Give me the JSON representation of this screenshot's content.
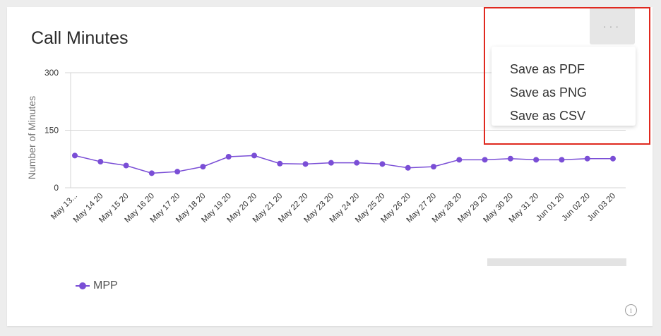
{
  "card": {
    "title": "Call Minutes"
  },
  "menu": {
    "trigger_icon": "more-horizontal-icon",
    "items": [
      {
        "label": "Save as PDF"
      },
      {
        "label": "Save as PNG"
      },
      {
        "label": "Save as CSV"
      }
    ]
  },
  "legend": {
    "label": "MPP"
  },
  "info_icon": "info-icon",
  "colors": {
    "series": "#7a4ed6",
    "highlight": "#e0291f",
    "gridline": "#d6d6d6"
  },
  "chart_data": {
    "type": "line",
    "title": "",
    "xlabel": "",
    "ylabel": "Number of Minutes",
    "ylim": [
      0,
      300
    ],
    "yticks": [
      0,
      150,
      300
    ],
    "grid": true,
    "legend_position": "bottom-left",
    "categories": [
      "May 13...",
      "May 14 20",
      "May 15 20",
      "May 16 20",
      "May 17 20",
      "May 18 20",
      "May 19 20",
      "May 20 20",
      "May 21 20",
      "May 22 20",
      "May 23 20",
      "May 24 20",
      "May 25 20",
      "May 26 20",
      "May 27 20",
      "May 28 20",
      "May 29 20",
      "May 30 20",
      "May 31 20",
      "Jun 01 20",
      "Jun 02 20",
      "Jun 03 20"
    ],
    "series": [
      {
        "name": "MPP",
        "values": [
          84,
          68,
          58,
          38,
          42,
          55,
          81,
          84,
          63,
          62,
          65,
          65,
          62,
          52,
          55,
          73,
          73,
          76,
          73,
          73,
          76,
          76
        ]
      }
    ]
  }
}
